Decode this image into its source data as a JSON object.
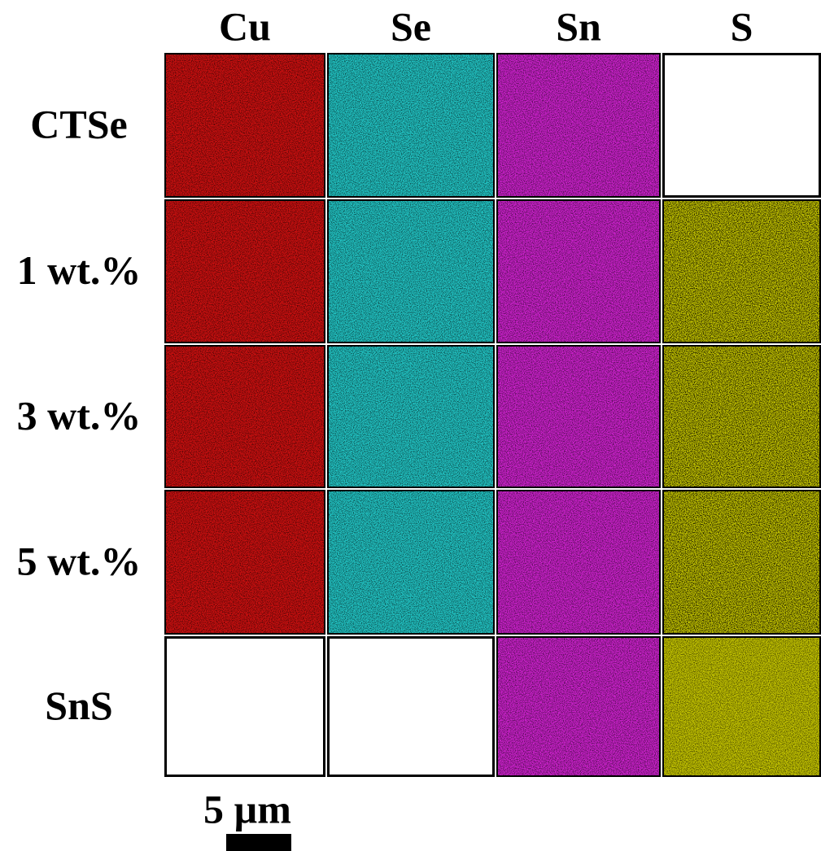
{
  "figure": {
    "columns": [
      "Cu",
      "Se",
      "Sn",
      "S"
    ],
    "rows": [
      "CTSe",
      "1 wt.%",
      "3 wt.%",
      "5 wt.%",
      "SnS"
    ],
    "scale_bar": "5 µm"
  }
}
